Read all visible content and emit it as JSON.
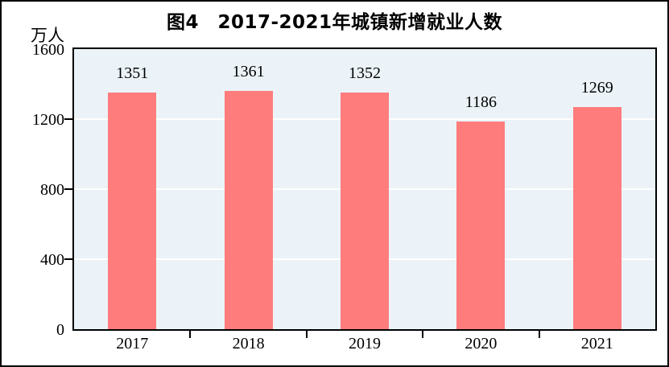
{
  "figure": {
    "title": "图4　2017-2021年城镇新增就业人数"
  },
  "chart_data": {
    "type": "bar",
    "title": "图4　2017-2021年城镇新增就业人数",
    "categories": [
      "2017",
      "2018",
      "2019",
      "2020",
      "2021"
    ],
    "values": [
      1351,
      1361,
      1352,
      1186,
      1269
    ],
    "data_labels": [
      "1351",
      "1361",
      "1352",
      "1186",
      "1269"
    ],
    "xlabel": "",
    "ylabel": "万人",
    "ylim": [
      0,
      1600
    ],
    "yticks": [
      0,
      400,
      800,
      1200,
      1600
    ],
    "grid": true,
    "legend_position": "none",
    "colors": {
      "bar": "#FF7C7C",
      "plot_background": "#EBF3F8",
      "gridline": "#FFFFFF",
      "axis": "#000000",
      "text": "#000000",
      "figure_background": "#FFFFFF"
    }
  }
}
